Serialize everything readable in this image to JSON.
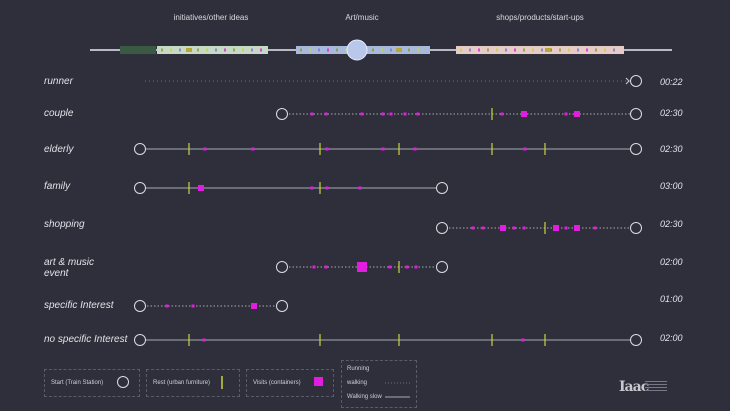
{
  "categories": [
    {
      "id": "initiatives",
      "label": "initiatives/other ideas",
      "start": 157,
      "end": 268,
      "color": "#c6d9c4"
    },
    {
      "id": "art",
      "label": "Art/music",
      "start": 296,
      "end": 430,
      "color": "#a9b9d9"
    },
    {
      "id": "shops",
      "label": "shops/products/start-ups",
      "start": 456,
      "end": 624,
      "color": "#e6cbc6"
    }
  ],
  "timeline": {
    "start": 90,
    "end": 672
  },
  "rows": [
    {
      "id": "runner",
      "label": "runner",
      "time": "00:22",
      "start": 145,
      "end": 636,
      "style": "running",
      "arrow": true,
      "rests": [],
      "visits": []
    },
    {
      "id": "couple",
      "label": "couple",
      "time": "02:30",
      "start": 282,
      "end": 636,
      "style": "slow",
      "rests": [
        492
      ],
      "visits": [
        [
          312,
          1
        ],
        [
          326,
          1
        ],
        [
          362,
          1
        ],
        [
          383,
          1
        ],
        [
          391,
          1
        ],
        [
          405,
          1
        ],
        [
          418,
          1
        ],
        [
          502,
          1
        ],
        [
          524,
          2
        ],
        [
          566,
          1
        ],
        [
          577,
          2
        ]
      ]
    },
    {
      "id": "elderly",
      "label": "elderly",
      "time": "02:30",
      "start": 140,
      "end": 636,
      "style": "walking",
      "rests": [
        189,
        320,
        399,
        492,
        545
      ],
      "visits": [
        [
          205,
          1
        ],
        [
          253,
          1
        ],
        [
          327,
          1
        ],
        [
          383,
          1
        ],
        [
          415,
          1
        ],
        [
          525,
          1
        ]
      ]
    },
    {
      "id": "family",
      "label": "family",
      "time": "03:00",
      "start": 140,
      "end": 442,
      "style": "walking",
      "rests": [
        189,
        320
      ],
      "visits": [
        [
          201,
          2
        ],
        [
          312,
          1
        ],
        [
          327,
          1
        ],
        [
          360,
          1
        ]
      ]
    },
    {
      "id": "shopping",
      "label": "shopping",
      "time": "02:30",
      "start": 442,
      "end": 636,
      "style": "slow",
      "rests": [
        545
      ],
      "visits": [
        [
          473,
          1
        ],
        [
          483,
          1
        ],
        [
          503,
          2
        ],
        [
          514,
          1
        ],
        [
          524,
          1
        ],
        [
          556,
          2
        ],
        [
          566,
          1
        ],
        [
          577,
          2
        ],
        [
          595,
          1
        ]
      ]
    },
    {
      "id": "art-music",
      "label": "art & music event",
      "time": "02:00",
      "start": 282,
      "end": 442,
      "style": "slow",
      "rests": [
        399
      ],
      "visits": [
        [
          314,
          1
        ],
        [
          326,
          1
        ],
        [
          362,
          3
        ],
        [
          390,
          1
        ],
        [
          407,
          1
        ],
        [
          416,
          1
        ]
      ]
    },
    {
      "id": "specific",
      "label": "specific Interest",
      "time": "01:00",
      "start": 140,
      "end": 282,
      "style": "slow",
      "rests": [],
      "visits": [
        [
          167,
          1
        ],
        [
          193,
          1
        ],
        [
          254,
          2
        ]
      ]
    },
    {
      "id": "nonspecific",
      "label": "no specific Interest",
      "time": "02:00",
      "start": 140,
      "end": 636,
      "style": "walking",
      "rests": [
        189,
        320,
        399,
        492,
        545
      ],
      "visits": [
        [
          204,
          1
        ],
        [
          523,
          1
        ]
      ]
    }
  ],
  "colors": {
    "visit": "#e21de0",
    "rest": "#c8d43a",
    "line": "#a7a8b2",
    "bg": "#2e2f3a"
  },
  "legend": {
    "start": "Start (Train Station)",
    "rest": "Rest (urban furniture)",
    "visits": "Visits (containers)",
    "running": "Running",
    "walking": "walking",
    "walking_slow": "Walking slow"
  },
  "logo": "Iaac"
}
